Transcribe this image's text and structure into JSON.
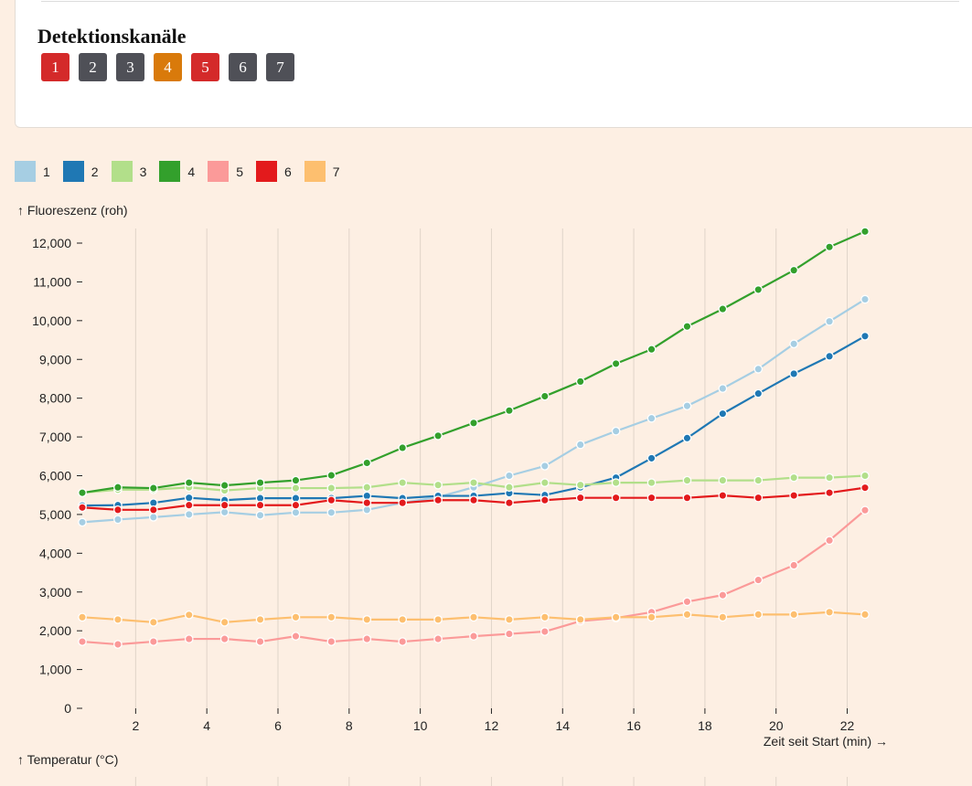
{
  "card": {
    "title": "Detektionskanäle",
    "buttons": [
      {
        "label": "1",
        "color": "#d42a2a"
      },
      {
        "label": "2",
        "color": "#4f5057"
      },
      {
        "label": "3",
        "color": "#4f5057"
      },
      {
        "label": "4",
        "color": "#d97a0b"
      },
      {
        "label": "5",
        "color": "#d42a2a"
      },
      {
        "label": "6",
        "color": "#4f5057"
      },
      {
        "label": "7",
        "color": "#4f5057"
      }
    ]
  },
  "lower_axis_label": "↑ Temperatur (°C)",
  "chart_data": {
    "type": "line",
    "ylabel": "↑ Fluoreszenz (roh)",
    "xlabel": "Zeit seit Start (min) →",
    "xlim": [
      0.5,
      23
    ],
    "ylim": [
      0,
      12000
    ],
    "x_ticks": [
      2,
      4,
      6,
      8,
      10,
      12,
      14,
      16,
      18,
      20,
      22
    ],
    "y_ticks": [
      0,
      1000,
      2000,
      3000,
      4000,
      5000,
      6000,
      7000,
      8000,
      9000,
      10000,
      11000,
      12000
    ],
    "y_tick_labels": [
      "0",
      "1,000",
      "2,000",
      "3,000",
      "4,000",
      "5,000",
      "6,000",
      "7,000",
      "8,000",
      "9,000",
      "10,000",
      "11,000",
      "12,000"
    ],
    "grid": "vertical",
    "legend": "top-left",
    "x": [
      0.5,
      1.5,
      2.5,
      3.5,
      4.5,
      5.5,
      6.5,
      7.5,
      8.5,
      9.5,
      10.5,
      11.5,
      12.5,
      13.5,
      14.5,
      15.5,
      16.5,
      17.5,
      18.5,
      19.5,
      20.5,
      21.5,
      22.5
    ],
    "series": [
      {
        "name": "1",
        "color": "#a6cee3",
        "values": [
          4800,
          4870,
          4930,
          5000,
          5060,
          4980,
          5050,
          5050,
          5120,
          5300,
          5450,
          5700,
          6000,
          6250,
          6800,
          7150,
          7480,
          7800,
          8250,
          8750,
          9400,
          9980,
          10550
        ]
      },
      {
        "name": "2",
        "color": "#1f78b4",
        "values": [
          5230,
          5240,
          5300,
          5430,
          5370,
          5420,
          5420,
          5420,
          5480,
          5420,
          5480,
          5480,
          5550,
          5500,
          5700,
          5950,
          6450,
          6970,
          7600,
          8120,
          8630,
          9080,
          9600
        ]
      },
      {
        "name": "3",
        "color": "#b2df8a",
        "values": [
          5560,
          5640,
          5640,
          5700,
          5620,
          5680,
          5680,
          5680,
          5700,
          5820,
          5760,
          5820,
          5700,
          5820,
          5760,
          5820,
          5820,
          5880,
          5880,
          5880,
          5950,
          5950,
          6000
        ]
      },
      {
        "name": "4",
        "color": "#33a02c",
        "values": [
          5560,
          5700,
          5680,
          5820,
          5750,
          5820,
          5880,
          6010,
          6330,
          6720,
          7030,
          7360,
          7680,
          8050,
          8430,
          8890,
          9260,
          9850,
          10300,
          10800,
          11300,
          11900,
          12300
        ]
      },
      {
        "name": "5",
        "color": "#fb9a99",
        "values": [
          1720,
          1650,
          1720,
          1790,
          1790,
          1720,
          1860,
          1720,
          1790,
          1720,
          1790,
          1860,
          1920,
          1980,
          2250,
          2330,
          2480,
          2750,
          2920,
          3310,
          3690,
          4330,
          5110
        ]
      },
      {
        "name": "6",
        "color": "#e31a1c",
        "values": [
          5180,
          5120,
          5120,
          5240,
          5240,
          5240,
          5240,
          5370,
          5300,
          5300,
          5370,
          5370,
          5300,
          5370,
          5430,
          5430,
          5430,
          5430,
          5490,
          5430,
          5490,
          5560,
          5690
        ]
      },
      {
        "name": "7",
        "color": "#fdbf6f",
        "values": [
          2350,
          2290,
          2220,
          2410,
          2220,
          2290,
          2350,
          2350,
          2290,
          2290,
          2290,
          2350,
          2290,
          2350,
          2290,
          2350,
          2350,
          2420,
          2350,
          2420,
          2420,
          2480,
          2420
        ]
      }
    ]
  }
}
